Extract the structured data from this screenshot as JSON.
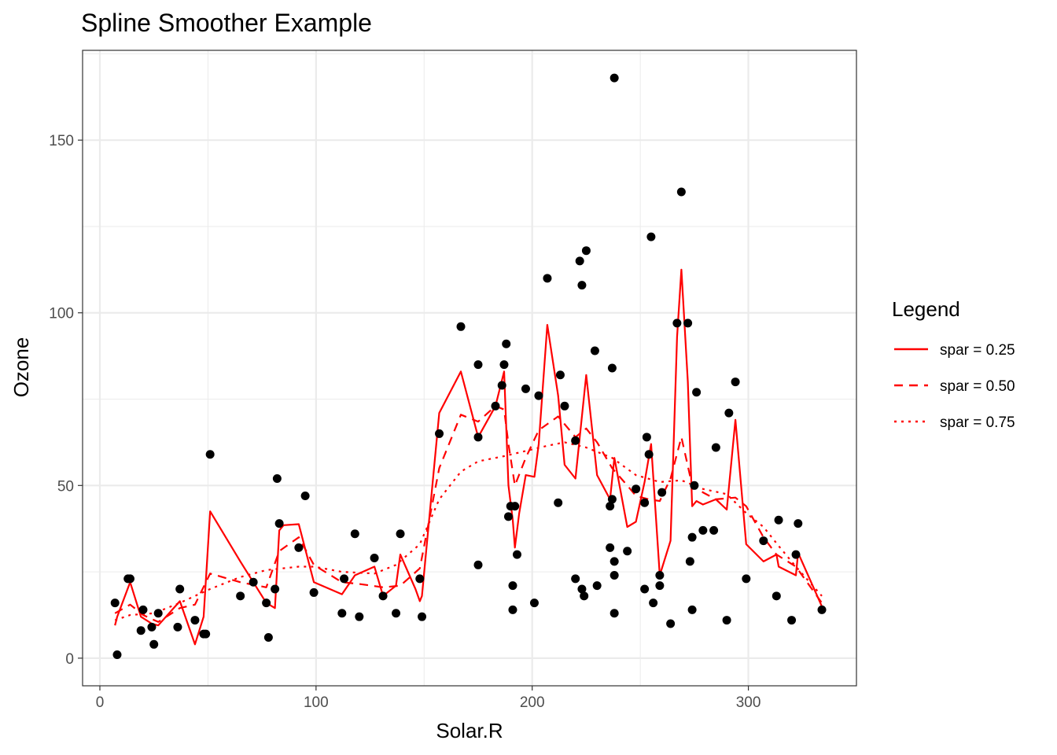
{
  "chart_data": {
    "type": "scatter",
    "title": "Spline Smoother Example",
    "xlabel": "Solar.R",
    "ylabel": "Ozone",
    "xlim": [
      -8,
      350
    ],
    "ylim": [
      -8,
      176
    ],
    "x_ticks": [
      0,
      100,
      200,
      300
    ],
    "y_ticks": [
      0,
      50,
      100,
      150
    ],
    "x_tick_labels": [
      "0",
      "100",
      "200",
      "300"
    ],
    "y_tick_labels": [
      "0",
      "50",
      "100",
      "150"
    ],
    "grid": true,
    "legend": {
      "title": "Legend",
      "position": "right",
      "entries": [
        {
          "label": "spar = 0.25",
          "linetype": "solid"
        },
        {
          "label": "spar = 0.50",
          "linetype": "dashed"
        },
        {
          "label": "spar = 0.75",
          "linetype": "dotted"
        }
      ]
    },
    "points_color": "#000000",
    "line_color": "#ff0000",
    "points": [
      [
        7,
        16
      ],
      [
        8,
        1
      ],
      [
        13,
        23
      ],
      [
        14,
        23
      ],
      [
        19,
        8
      ],
      [
        20,
        14
      ],
      [
        24,
        9
      ],
      [
        25,
        4
      ],
      [
        27,
        13
      ],
      [
        36,
        9
      ],
      [
        37,
        20
      ],
      [
        44,
        11
      ],
      [
        48,
        7
      ],
      [
        49,
        7
      ],
      [
        51,
        59
      ],
      [
        65,
        18
      ],
      [
        71,
        22
      ],
      [
        77,
        16
      ],
      [
        78,
        6
      ],
      [
        81,
        20
      ],
      [
        82,
        52
      ],
      [
        83,
        39
      ],
      [
        92,
        32
      ],
      [
        95,
        47
      ],
      [
        99,
        19
      ],
      [
        112,
        13
      ],
      [
        113,
        23
      ],
      [
        118,
        36
      ],
      [
        120,
        12
      ],
      [
        127,
        29
      ],
      [
        131,
        18
      ],
      [
        137,
        13
      ],
      [
        139,
        36
      ],
      [
        148,
        23
      ],
      [
        149,
        12
      ],
      [
        157,
        65
      ],
      [
        167,
        96
      ],
      [
        175,
        27
      ],
      [
        175,
        85
      ],
      [
        175,
        64
      ],
      [
        183,
        73
      ],
      [
        186,
        79
      ],
      [
        187,
        85
      ],
      [
        188,
        91
      ],
      [
        189,
        41
      ],
      [
        190,
        44
      ],
      [
        191,
        21
      ],
      [
        191,
        14
      ],
      [
        192,
        44
      ],
      [
        193,
        30
      ],
      [
        197,
        78
      ],
      [
        201,
        16
      ],
      [
        203,
        76
      ],
      [
        207,
        110
      ],
      [
        212,
        45
      ],
      [
        213,
        82
      ],
      [
        215,
        73
      ],
      [
        220,
        63
      ],
      [
        220,
        23
      ],
      [
        222,
        115
      ],
      [
        223,
        108
      ],
      [
        223,
        20
      ],
      [
        224,
        18
      ],
      [
        225,
        118
      ],
      [
        229,
        89
      ],
      [
        230,
        21
      ],
      [
        236,
        32
      ],
      [
        236,
        44
      ],
      [
        237,
        84
      ],
      [
        237,
        46
      ],
      [
        238,
        168
      ],
      [
        238,
        28
      ],
      [
        238,
        24
      ],
      [
        238,
        13
      ],
      [
        244,
        31
      ],
      [
        248,
        49
      ],
      [
        252,
        20
      ],
      [
        252,
        45
      ],
      [
        253,
        64
      ],
      [
        254,
        59
      ],
      [
        255,
        122
      ],
      [
        256,
        16
      ],
      [
        259,
        21
      ],
      [
        259,
        24
      ],
      [
        260,
        48
      ],
      [
        264,
        10
      ],
      [
        267,
        97
      ],
      [
        269,
        135
      ],
      [
        272,
        97
      ],
      [
        273,
        28
      ],
      [
        274,
        35
      ],
      [
        274,
        14
      ],
      [
        275,
        50
      ],
      [
        276,
        77
      ],
      [
        279,
        37
      ],
      [
        284,
        37
      ],
      [
        285,
        61
      ],
      [
        290,
        11
      ],
      [
        291,
        71
      ],
      [
        294,
        80
      ],
      [
        299,
        23
      ],
      [
        307,
        34
      ],
      [
        313,
        18
      ],
      [
        314,
        40
      ],
      [
        320,
        11
      ],
      [
        322,
        30
      ],
      [
        323,
        39
      ],
      [
        334,
        14
      ]
    ],
    "series": [
      {
        "linetype": "solid",
        "points": [
          [
            7,
            9.5
          ],
          [
            8,
            12
          ],
          [
            14,
            22
          ],
          [
            19,
            12
          ],
          [
            24,
            10
          ],
          [
            27,
            9.5
          ],
          [
            37,
            16.5
          ],
          [
            44,
            4
          ],
          [
            48,
            12
          ],
          [
            51,
            42.5
          ],
          [
            65,
            28
          ],
          [
            71,
            22
          ],
          [
            77,
            16
          ],
          [
            81,
            14.5
          ],
          [
            83,
            37
          ],
          [
            85,
            38.5
          ],
          [
            92,
            38.8
          ],
          [
            99,
            22
          ],
          [
            112,
            18.5
          ],
          [
            118,
            24
          ],
          [
            127,
            26.5
          ],
          [
            131,
            18
          ],
          [
            137,
            21
          ],
          [
            139,
            30
          ],
          [
            146,
            20
          ],
          [
            148,
            16.5
          ],
          [
            149,
            18
          ],
          [
            157,
            71
          ],
          [
            167,
            83
          ],
          [
            175,
            64
          ],
          [
            183,
            73
          ],
          [
            187,
            83
          ],
          [
            189,
            50
          ],
          [
            191,
            40
          ],
          [
            192,
            32
          ],
          [
            194,
            42
          ],
          [
            197,
            53
          ],
          [
            201,
            52.5
          ],
          [
            203,
            62
          ],
          [
            207,
            96.5
          ],
          [
            212,
            76
          ],
          [
            215,
            56
          ],
          [
            220,
            52
          ],
          [
            225,
            82
          ],
          [
            230,
            53
          ],
          [
            236,
            46
          ],
          [
            238,
            58
          ],
          [
            244,
            38
          ],
          [
            248,
            39.5
          ],
          [
            252,
            51
          ],
          [
            255,
            62
          ],
          [
            259,
            24
          ],
          [
            264,
            34
          ],
          [
            267,
            93
          ],
          [
            269,
            112.5
          ],
          [
            272,
            80
          ],
          [
            274,
            44
          ],
          [
            276,
            45.5
          ],
          [
            279,
            44.5
          ],
          [
            285,
            46
          ],
          [
            290,
            43
          ],
          [
            294,
            69
          ],
          [
            299,
            33
          ],
          [
            307,
            28
          ],
          [
            313,
            30
          ],
          [
            314,
            26.5
          ],
          [
            322,
            24
          ],
          [
            323,
            30.5
          ],
          [
            334,
            15
          ]
        ]
      },
      {
        "linetype": "dashed",
        "points": [
          [
            7,
            13
          ],
          [
            14,
            15.5
          ],
          [
            20,
            12.5
          ],
          [
            27,
            10.5
          ],
          [
            37,
            14.5
          ],
          [
            44,
            15.5
          ],
          [
            51,
            24.5
          ],
          [
            65,
            22
          ],
          [
            77,
            20.5
          ],
          [
            83,
            31
          ],
          [
            92,
            35
          ],
          [
            99,
            27
          ],
          [
            112,
            22
          ],
          [
            120,
            21.5
          ],
          [
            131,
            20.5
          ],
          [
            139,
            21
          ],
          [
            148,
            26
          ],
          [
            157,
            55
          ],
          [
            167,
            70.5
          ],
          [
            175,
            68.5
          ],
          [
            183,
            73
          ],
          [
            187,
            72
          ],
          [
            189,
            62
          ],
          [
            192,
            50
          ],
          [
            197,
            58
          ],
          [
            203,
            66
          ],
          [
            212,
            70
          ],
          [
            220,
            64
          ],
          [
            225,
            66.5
          ],
          [
            230,
            62.5
          ],
          [
            237,
            55
          ],
          [
            244,
            50
          ],
          [
            248,
            47
          ],
          [
            254,
            46
          ],
          [
            259,
            45.5
          ],
          [
            264,
            52
          ],
          [
            269,
            64
          ],
          [
            274,
            50
          ],
          [
            279,
            48
          ],
          [
            285,
            46
          ],
          [
            294,
            46.5
          ],
          [
            299,
            44
          ],
          [
            307,
            35
          ],
          [
            313,
            30
          ],
          [
            322,
            26.5
          ],
          [
            334,
            16
          ]
        ]
      },
      {
        "linetype": "dotted",
        "points": [
          [
            7,
            11
          ],
          [
            14,
            12.5
          ],
          [
            25,
            13
          ],
          [
            37,
            16
          ],
          [
            51,
            20
          ],
          [
            65,
            23.5
          ],
          [
            77,
            25.5
          ],
          [
            92,
            26.5
          ],
          [
            99,
            26.5
          ],
          [
            112,
            25
          ],
          [
            127,
            24.5
          ],
          [
            137,
            27
          ],
          [
            148,
            33
          ],
          [
            157,
            46
          ],
          [
            167,
            54
          ],
          [
            175,
            57
          ],
          [
            187,
            58.5
          ],
          [
            197,
            60
          ],
          [
            207,
            61.5
          ],
          [
            215,
            62.5
          ],
          [
            225,
            61
          ],
          [
            237,
            58
          ],
          [
            248,
            53
          ],
          [
            259,
            51
          ],
          [
            269,
            51.5
          ],
          [
            279,
            49
          ],
          [
            290,
            47.5
          ],
          [
            299,
            42
          ],
          [
            307,
            38
          ],
          [
            314,
            32.5
          ],
          [
            322,
            26.5
          ],
          [
            334,
            18
          ]
        ]
      }
    ]
  }
}
